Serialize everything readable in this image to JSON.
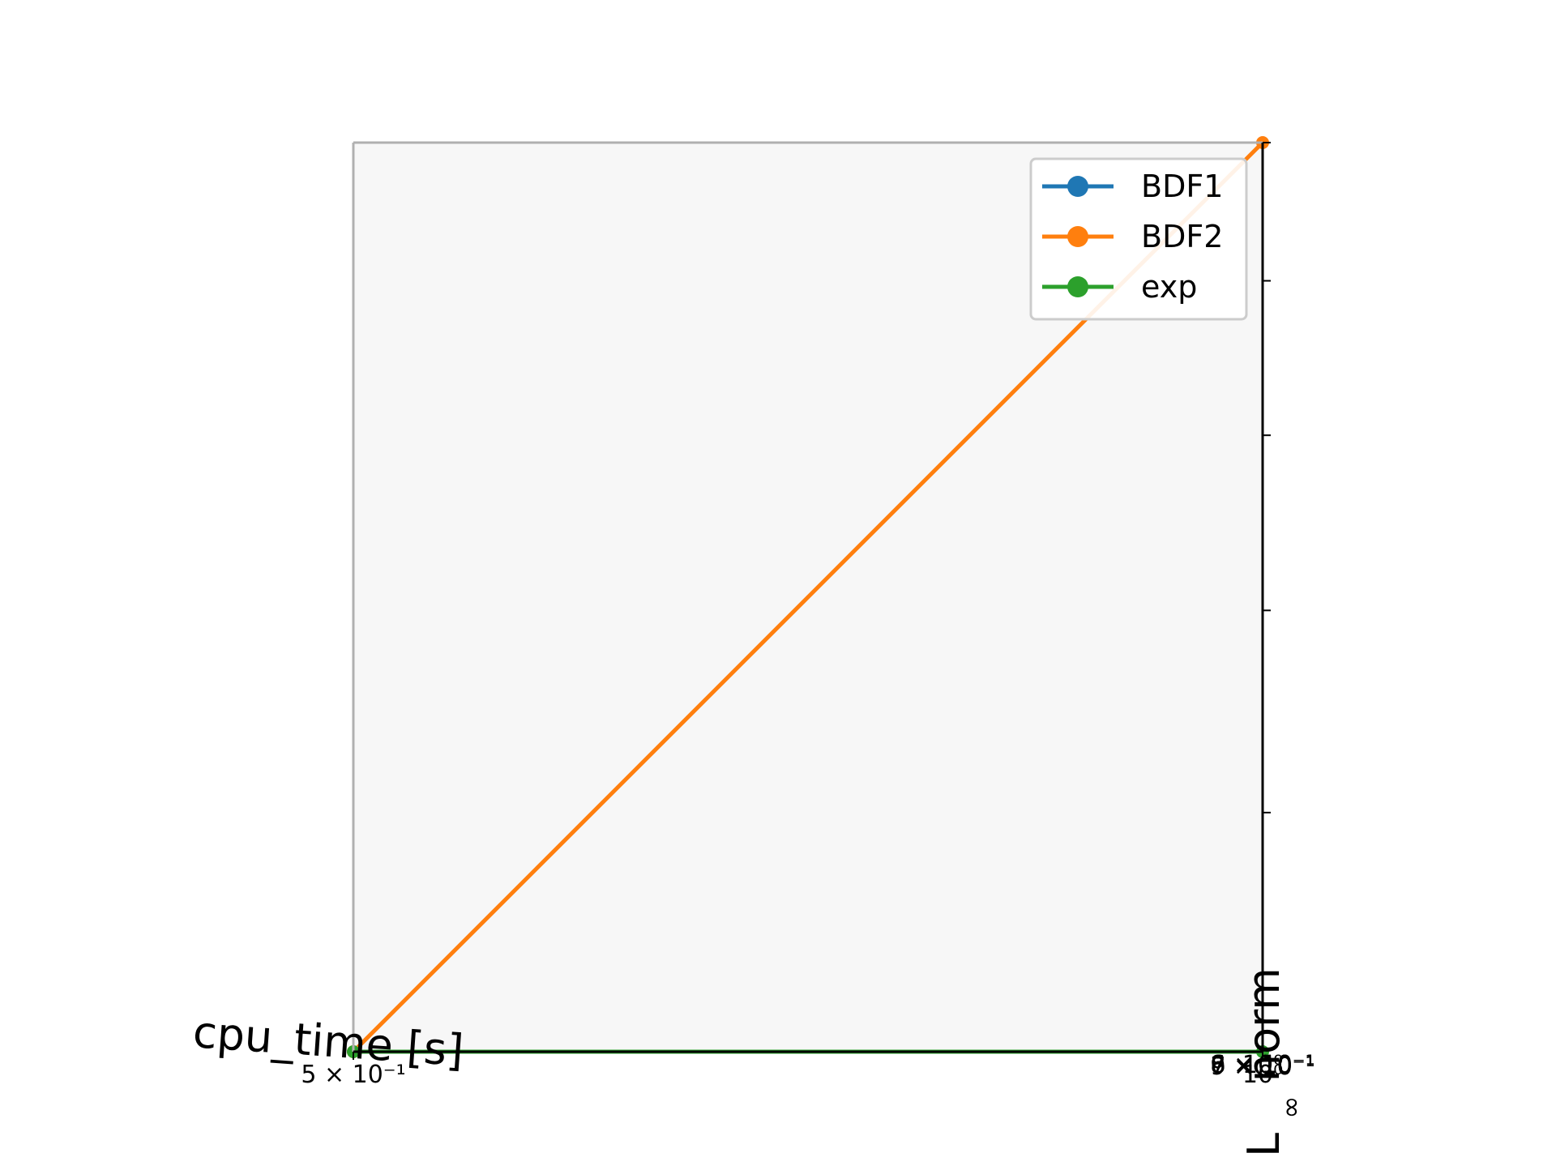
{
  "chart_data": {
    "type": "line",
    "title": "",
    "xlabel": "cpu_time [s]",
    "ylabel": "$L_\\infty$ norm",
    "xlabel_display": "cpu_time [s]",
    "ylabel_display": {
      "main": "L",
      "subscript": "∞",
      "rest": " norm"
    },
    "x_scale": "log",
    "y_scale": "log",
    "xlim": [
      0.5,
      1.0
    ],
    "ylim": [
      0.5,
      1.0
    ],
    "x_tick_labels": [
      "5 × 10⁻¹",
      "10⁰"
    ],
    "y_tick_labels": [
      "6 × 10⁻¹",
      "7 × 10⁻¹",
      "8 × 10⁻¹",
      "9 × 10⁻¹",
      "10⁰"
    ],
    "grid": false,
    "legend_position": "upper right",
    "series": [
      {
        "name": "BDF1",
        "color": "#1f77b4",
        "marker": "circle",
        "x": [],
        "y": []
      },
      {
        "name": "BDF2",
        "color": "#ff7f0e",
        "marker": "circle",
        "x": [
          0.5,
          1.0
        ],
        "y": [
          0.5,
          1.0
        ]
      },
      {
        "name": "exp",
        "color": "#2ca02c",
        "marker": "circle",
        "x": [
          0.5,
          1.0
        ],
        "y": [
          0.5,
          0.5
        ]
      }
    ],
    "colors": {
      "plot_background": "#f7f7f7",
      "axis_left_top": "#b0b0b0",
      "axis_right_bottom": "#000000",
      "legend_border": "#cccccc"
    }
  }
}
